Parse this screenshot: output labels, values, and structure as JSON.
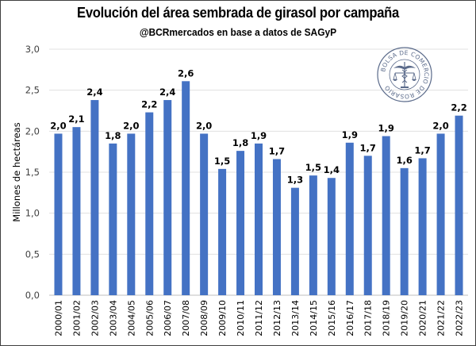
{
  "chart_data": {
    "type": "bar",
    "title": "Evolución del área sembrada de girasol por campaña",
    "subtitle": "@BCRmercados en base a datos de SAGyP",
    "xlabel": "",
    "ylabel": "Millones de hectáreas",
    "ylim": [
      0,
      3.0
    ],
    "yticks": [
      "0,0",
      "0,5",
      "1,0",
      "1,5",
      "2,0",
      "2,5",
      "3,0"
    ],
    "ytick_values": [
      0,
      0.5,
      1.0,
      1.5,
      2.0,
      2.5,
      3.0
    ],
    "grid": true,
    "bar_color": "#4472C4",
    "categories": [
      "2000/01",
      "2001/02",
      "2002/03",
      "2003/04",
      "2004/05",
      "2005/06",
      "2006/07",
      "2007/08",
      "2008/09",
      "2009/10",
      "2010/11",
      "2011/12",
      "2012/13",
      "2013/14",
      "2014/15",
      "2015/16",
      "2016/17",
      "2017/18",
      "2018/19",
      "2019/20",
      "2020/21",
      "2021/22",
      "2022/23"
    ],
    "values": [
      1.97,
      2.05,
      2.38,
      1.85,
      1.97,
      2.23,
      2.38,
      2.61,
      1.97,
      1.54,
      1.76,
      1.85,
      1.66,
      1.31,
      1.46,
      1.43,
      1.86,
      1.7,
      1.94,
      1.55,
      1.67,
      1.97,
      2.19
    ],
    "data_labels": [
      "2,0",
      "2,1",
      "2,4",
      "1,8",
      "2,0",
      "2,2",
      "2,4",
      "2,6",
      "2,0",
      "1,5",
      "1,8",
      "1,9",
      "1,7",
      "1,3",
      "1,5",
      "1,4",
      "1,9",
      "1,7",
      "1,9",
      "1,6",
      "1,7",
      "2,0",
      "2,2"
    ]
  },
  "logo": {
    "text": "BOLSA DE COMERCIO DE ROSARIO",
    "color": "#5a6a8a"
  }
}
